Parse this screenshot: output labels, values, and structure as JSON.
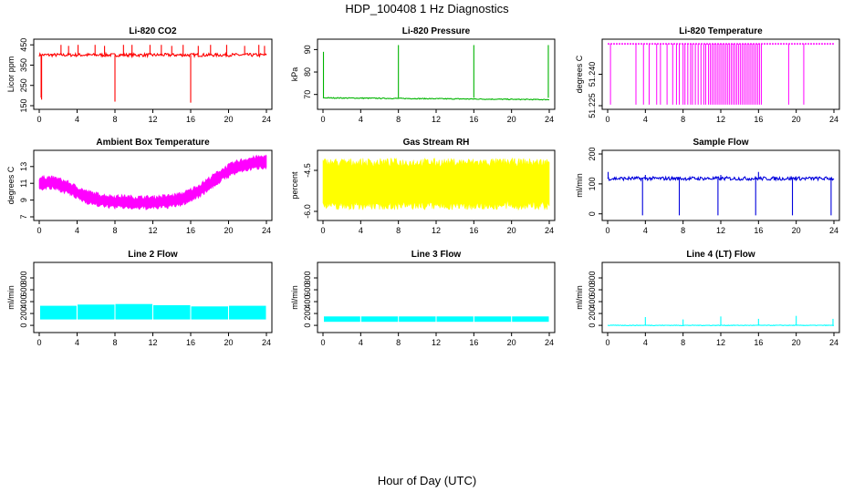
{
  "figure": {
    "title": "HDP_100408  1 Hz Diagnostics",
    "xlabel": "Hour of Day (UTC)"
  },
  "chart_data": [
    {
      "id": "co2",
      "type": "line",
      "title": "Li-820 CO2",
      "ylabel": "Licor ppm",
      "color": "#ff0000",
      "xlim": [
        0,
        24
      ],
      "ylim": [
        150,
        460
      ],
      "xticks": [
        "0",
        "4",
        "8",
        "12",
        "16",
        "20",
        "24"
      ],
      "yticks": [
        "150",
        "250",
        "350",
        "450"
      ],
      "series": [
        {
          "base": 400,
          "noise": 8,
          "spikes": [
            [
              0.2,
              190
            ],
            [
              0.25,
              180
            ],
            [
              2.3,
              450
            ],
            [
              3.1,
              445
            ],
            [
              4.1,
              450
            ],
            [
              5.9,
              450
            ],
            [
              6.9,
              445
            ],
            [
              8.0,
              170
            ],
            [
              8.9,
              450
            ],
            [
              9.8,
              450
            ],
            [
              11.7,
              450
            ],
            [
              12.9,
              450
            ],
            [
              14.0,
              445
            ],
            [
              15.2,
              450
            ],
            [
              16.0,
              165
            ],
            [
              16.8,
              445
            ],
            [
              18.1,
              450
            ],
            [
              19.8,
              450
            ],
            [
              21.7,
              445
            ],
            [
              23.2,
              450
            ],
            [
              23.8,
              445
            ]
          ]
        }
      ]
    },
    {
      "id": "pressure",
      "type": "line",
      "title": "Li-820 Pressure",
      "ylabel": "kPa",
      "color": "#00b400",
      "xlim": [
        0,
        24
      ],
      "ylim": [
        65,
        93
      ],
      "xticks": [
        "0",
        "4",
        "8",
        "12",
        "16",
        "20",
        "24"
      ],
      "yticks": [
        "70",
        "80",
        "90"
      ],
      "series": [
        {
          "start": 68.5,
          "end": 67.7,
          "noise": 0.2,
          "spikes": [
            [
              0.05,
              89
            ],
            [
              8.0,
              92
            ],
            [
              16.0,
              92
            ],
            [
              23.9,
              92
            ]
          ]
        }
      ]
    },
    {
      "id": "licor-temp",
      "type": "line",
      "title": "Li-820 Temperature",
      "ylabel": "degrees C",
      "color": "#ff00ff",
      "xlim": [
        0,
        24
      ],
      "ylim": [
        51.225,
        51.255
      ],
      "xticks": [
        "0",
        "4",
        "8",
        "12",
        "16",
        "20",
        "24"
      ],
      "yticks": [
        "51.225",
        "51.240"
      ],
      "series": [
        {
          "base": 51.2545,
          "low": 51.2255,
          "drops": [
            0.3,
            3.0,
            3.8,
            4.4,
            5.2,
            5.6,
            6.3,
            6.9,
            7.3,
            7.6,
            8.0,
            8.2,
            8.5,
            8.8,
            9.0,
            9.3,
            9.6,
            9.9,
            10.2,
            10.4,
            10.7,
            10.9,
            11.1,
            11.3,
            11.5,
            11.7,
            11.9,
            12.1,
            12.3,
            12.5,
            12.7,
            12.9,
            13.1,
            13.3,
            13.5,
            13.7,
            13.9,
            14.1,
            14.3,
            14.5,
            14.7,
            14.9,
            15.1,
            15.3,
            15.5,
            15.7,
            15.9,
            16.1,
            16.3,
            19.2,
            20.8
          ]
        }
      ]
    },
    {
      "id": "box-temp",
      "type": "area",
      "title": "Ambient Box Temperature",
      "ylabel": "degrees C",
      "color": "#ff00ff",
      "xlim": [
        0,
        24
      ],
      "ylim": [
        7,
        14.5
      ],
      "xticks": [
        "0",
        "4",
        "8",
        "12",
        "16",
        "20",
        "24"
      ],
      "yticks": [
        "7",
        "9",
        "11",
        "13"
      ],
      "series": [
        {
          "x": [
            0,
            1,
            2,
            3,
            4,
            5,
            6,
            7,
            8,
            9,
            10,
            11,
            12,
            13,
            14,
            15,
            16,
            17,
            18,
            19,
            20,
            21,
            22,
            23,
            24
          ],
          "mid": [
            11.0,
            11.1,
            10.9,
            10.5,
            9.9,
            9.4,
            9.1,
            8.9,
            8.8,
            8.8,
            8.7,
            8.7,
            8.7,
            8.8,
            8.9,
            9.1,
            9.6,
            10.2,
            11.0,
            11.8,
            12.5,
            13.0,
            13.3,
            13.5,
            13.6
          ],
          "half": 0.8
        }
      ]
    },
    {
      "id": "rh",
      "type": "area",
      "title": "Gas Stream RH",
      "ylabel": "percent",
      "color": "#ffff00",
      "xlim": [
        0,
        24
      ],
      "ylim": [
        -6.2,
        -3.9
      ],
      "xticks": [
        "0",
        "4",
        "8",
        "12",
        "16",
        "20",
        "24"
      ],
      "yticks": [
        "-6.0",
        "-4.5"
      ],
      "series": [
        {
          "mid": -5.0,
          "half": 0.9
        }
      ]
    },
    {
      "id": "sample-flow",
      "type": "line",
      "title": "Sample Flow",
      "ylabel": "ml/min",
      "color": "#0000dd",
      "xlim": [
        0,
        24
      ],
      "ylim": [
        -10,
        200
      ],
      "xticks": [
        "0",
        "4",
        "8",
        "12",
        "16",
        "20",
        "24"
      ],
      "yticks": [
        "0",
        "100",
        "200"
      ],
      "series": [
        {
          "base": 118,
          "noise": 6,
          "spikes": [
            [
              0.05,
              140
            ],
            [
              3.7,
              -5
            ],
            [
              7.6,
              -5
            ],
            [
              11.7,
              -5
            ],
            [
              15.7,
              -5
            ],
            [
              19.6,
              -5
            ],
            [
              23.7,
              -5
            ],
            [
              4.0,
              130
            ],
            [
              12.0,
              130
            ],
            [
              16.0,
              140
            ],
            [
              20.0,
              125
            ]
          ]
        }
      ]
    },
    {
      "id": "line2-flow",
      "type": "area",
      "title": "Line 2 Flow",
      "ylabel": "ml/min",
      "color": "#00ffff",
      "xlim": [
        0,
        24
      ],
      "ylim": [
        -60,
        1000
      ],
      "xticks": [
        "0",
        "4",
        "8",
        "12",
        "16",
        "20",
        "24"
      ],
      "yticks": [
        "0",
        "200",
        "400",
        "600",
        "800"
      ],
      "series": [
        {
          "low": 100,
          "high": 320,
          "gaps": [
            0.05,
            4.0,
            8.0,
            12.0,
            16.0,
            20.0,
            24.0
          ],
          "highs": [
            330,
            350,
            360,
            340,
            320,
            330
          ]
        }
      ]
    },
    {
      "id": "line3-flow",
      "type": "area",
      "title": "Line 3 Flow",
      "ylabel": "ml/min",
      "color": "#00ffff",
      "xlim": [
        0,
        24
      ],
      "ylim": [
        -60,
        1000
      ],
      "xticks": [
        "0",
        "4",
        "8",
        "12",
        "16",
        "20",
        "24"
      ],
      "yticks": [
        "0",
        "200",
        "400",
        "600",
        "800"
      ],
      "series": [
        {
          "low": 60,
          "high": 150,
          "gaps": [
            0.05,
            4.0,
            8.0,
            12.0,
            16.0,
            20.0,
            24.0
          ],
          "highs": [
            150,
            150,
            150,
            150,
            150,
            150
          ]
        }
      ]
    },
    {
      "id": "line4-flow",
      "type": "line",
      "title": "Line 4 (LT) Flow",
      "ylabel": "ml/min",
      "color": "#00ffff",
      "xlim": [
        0,
        24
      ],
      "ylim": [
        -60,
        1000
      ],
      "xticks": [
        "0",
        "4",
        "8",
        "12",
        "16",
        "20",
        "24"
      ],
      "yticks": [
        "0",
        "200",
        "400",
        "600",
        "800"
      ],
      "series": [
        {
          "base": 0,
          "noise": 5,
          "spikes": [
            [
              4.0,
              140
            ],
            [
              8.0,
              100
            ],
            [
              12.0,
              150
            ],
            [
              16.0,
              110
            ],
            [
              20.0,
              160
            ],
            [
              23.9,
              110
            ]
          ]
        }
      ]
    }
  ]
}
